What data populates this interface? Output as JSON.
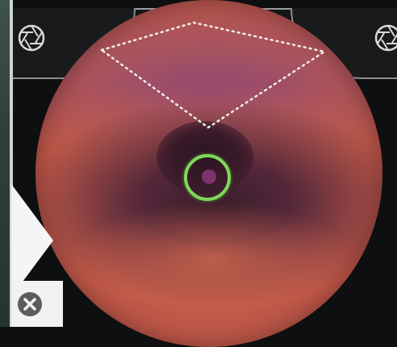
{
  "colors": {
    "focus_ring": "#7ed957",
    "frame_line": "#8c8f91",
    "background": "#0e0f10",
    "view_tint": "#c25a4a"
  },
  "icons": {
    "shutter_left": "aperture-icon",
    "shutter_right": "aperture-icon",
    "close": "close-icon",
    "next": "arrow-right-icon"
  }
}
